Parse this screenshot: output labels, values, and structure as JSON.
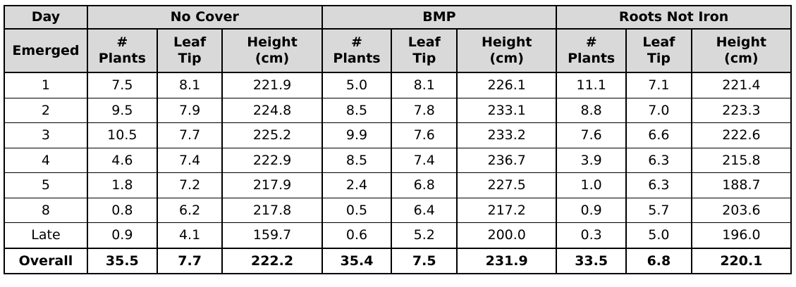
{
  "header": {
    "day_top": "Day",
    "day_bottom": "Emerged",
    "groups": [
      "No Cover",
      "BMP",
      "Roots Not Iron"
    ],
    "subcolumns": [
      [
        "#",
        "Plants"
      ],
      [
        "Leaf",
        "Tip"
      ],
      [
        "Height",
        "(cm)"
      ]
    ]
  },
  "rows": [
    {
      "day": "1",
      "values": [
        "7.5",
        "8.1",
        "221.9",
        "5.0",
        "8.1",
        "226.1",
        "11.1",
        "7.1",
        "221.4"
      ]
    },
    {
      "day": "2",
      "values": [
        "9.5",
        "7.9",
        "224.8",
        "8.5",
        "7.8",
        "233.1",
        "8.8",
        "7.0",
        "223.3"
      ]
    },
    {
      "day": "3",
      "values": [
        "10.5",
        "7.7",
        "225.2",
        "9.9",
        "7.6",
        "233.2",
        "7.6",
        "6.6",
        "222.6"
      ]
    },
    {
      "day": "4",
      "values": [
        "4.6",
        "7.4",
        "222.9",
        "8.5",
        "7.4",
        "236.7",
        "3.9",
        "6.3",
        "215.8"
      ]
    },
    {
      "day": "5",
      "values": [
        "1.8",
        "7.2",
        "217.9",
        "2.4",
        "6.8",
        "227.5",
        "1.0",
        "6.3",
        "188.7"
      ]
    },
    {
      "day": "8",
      "values": [
        "0.8",
        "6.2",
        "217.8",
        "0.5",
        "6.4",
        "217.2",
        "0.9",
        "5.7",
        "203.6"
      ]
    },
    {
      "day": "Late",
      "values": [
        "0.9",
        "4.1",
        "159.7",
        "0.6",
        "5.2",
        "200.0",
        "0.3",
        "5.0",
        "196.0"
      ]
    }
  ],
  "overall": {
    "day": "Overall",
    "values": [
      "35.5",
      "7.7",
      "222.2",
      "35.4",
      "7.5",
      "231.9",
      "33.5",
      "6.8",
      "220.1"
    ]
  },
  "colors": {
    "header_bg": "#d9d9d9",
    "border": "#000000",
    "body_bg": "#ffffff"
  }
}
